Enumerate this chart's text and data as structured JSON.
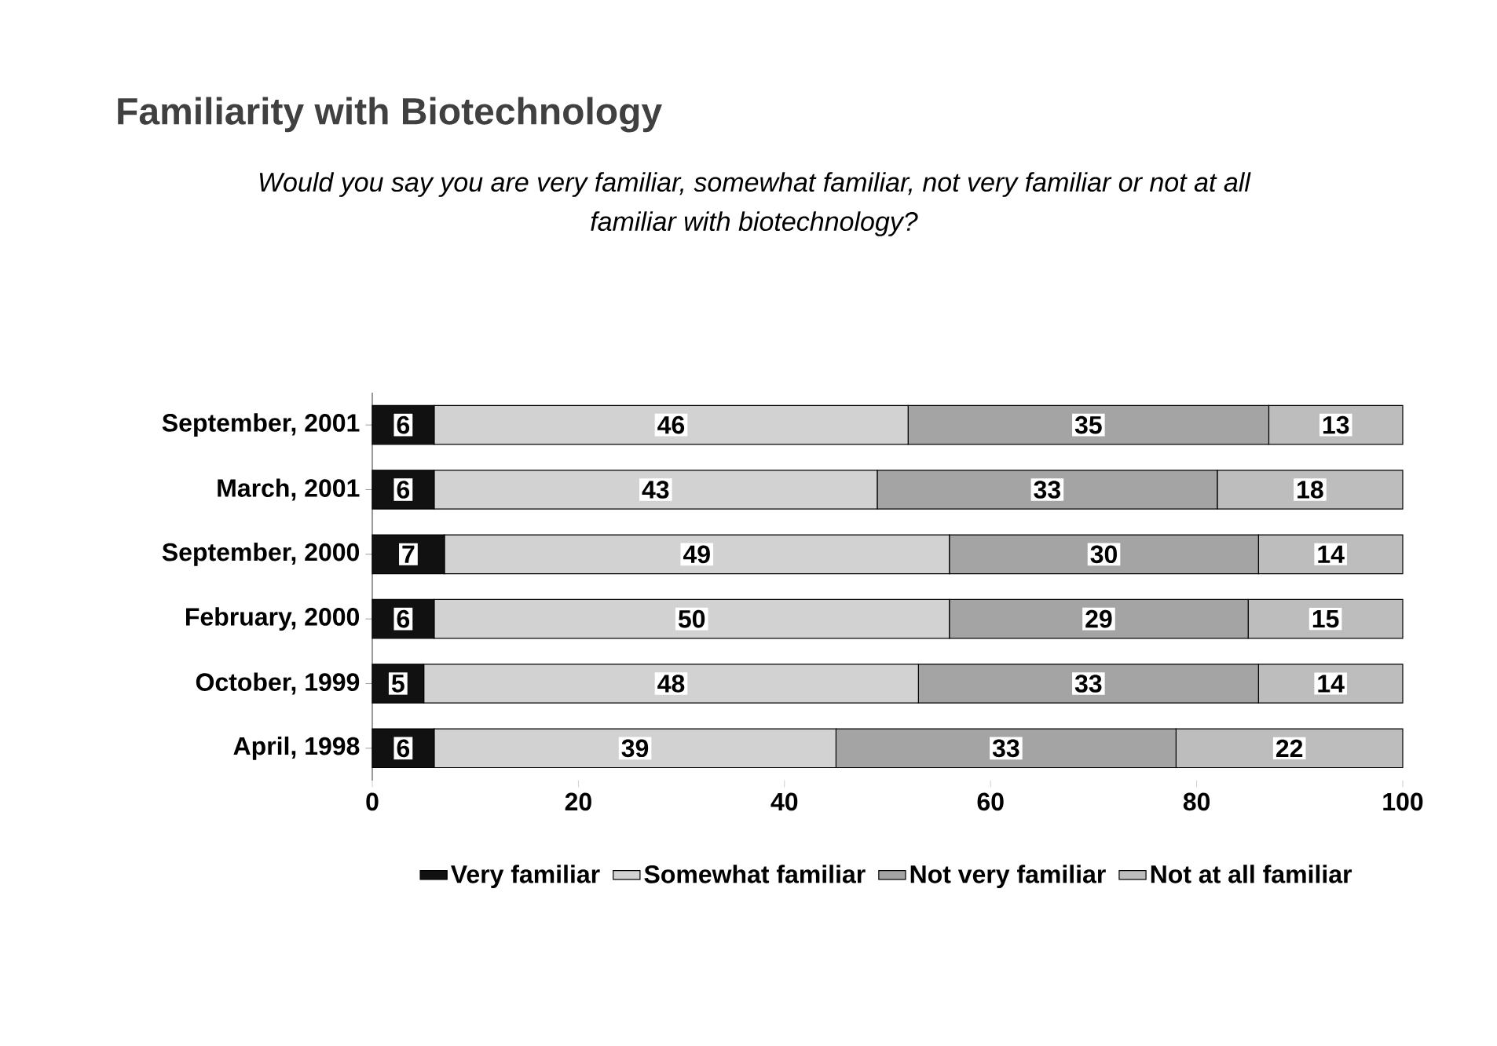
{
  "chart_data": {
    "type": "bar",
    "orientation": "horizontal",
    "stacked": true,
    "title": "Familiarity with Biotechnology",
    "subtitle": "Would you say you are very familiar, somewhat familiar, not very familiar or not at all familiar with biotechnology?",
    "categories": [
      "September, 2001",
      "March, 2001",
      "September, 2000",
      "February, 2000",
      "October, 1999",
      "April, 1998"
    ],
    "series": [
      {
        "name": "Very familiar",
        "color": "#111111",
        "values": [
          6,
          6,
          7,
          6,
          5,
          6
        ]
      },
      {
        "name": "Somewhat familiar",
        "color": "#d2d2d2",
        "values": [
          46,
          43,
          49,
          50,
          48,
          39
        ]
      },
      {
        "name": "Not very familiar",
        "color": "#a4a4a4",
        "values": [
          35,
          33,
          30,
          29,
          33,
          33
        ]
      },
      {
        "name": "Not at all familiar",
        "color": "#bdbdbd",
        "values": [
          13,
          18,
          14,
          15,
          14,
          22
        ]
      }
    ],
    "xlim": [
      0,
      100
    ],
    "xticks": [
      0,
      20,
      40,
      60,
      80,
      100
    ],
    "data_labels": true,
    "legend": "bottom"
  }
}
